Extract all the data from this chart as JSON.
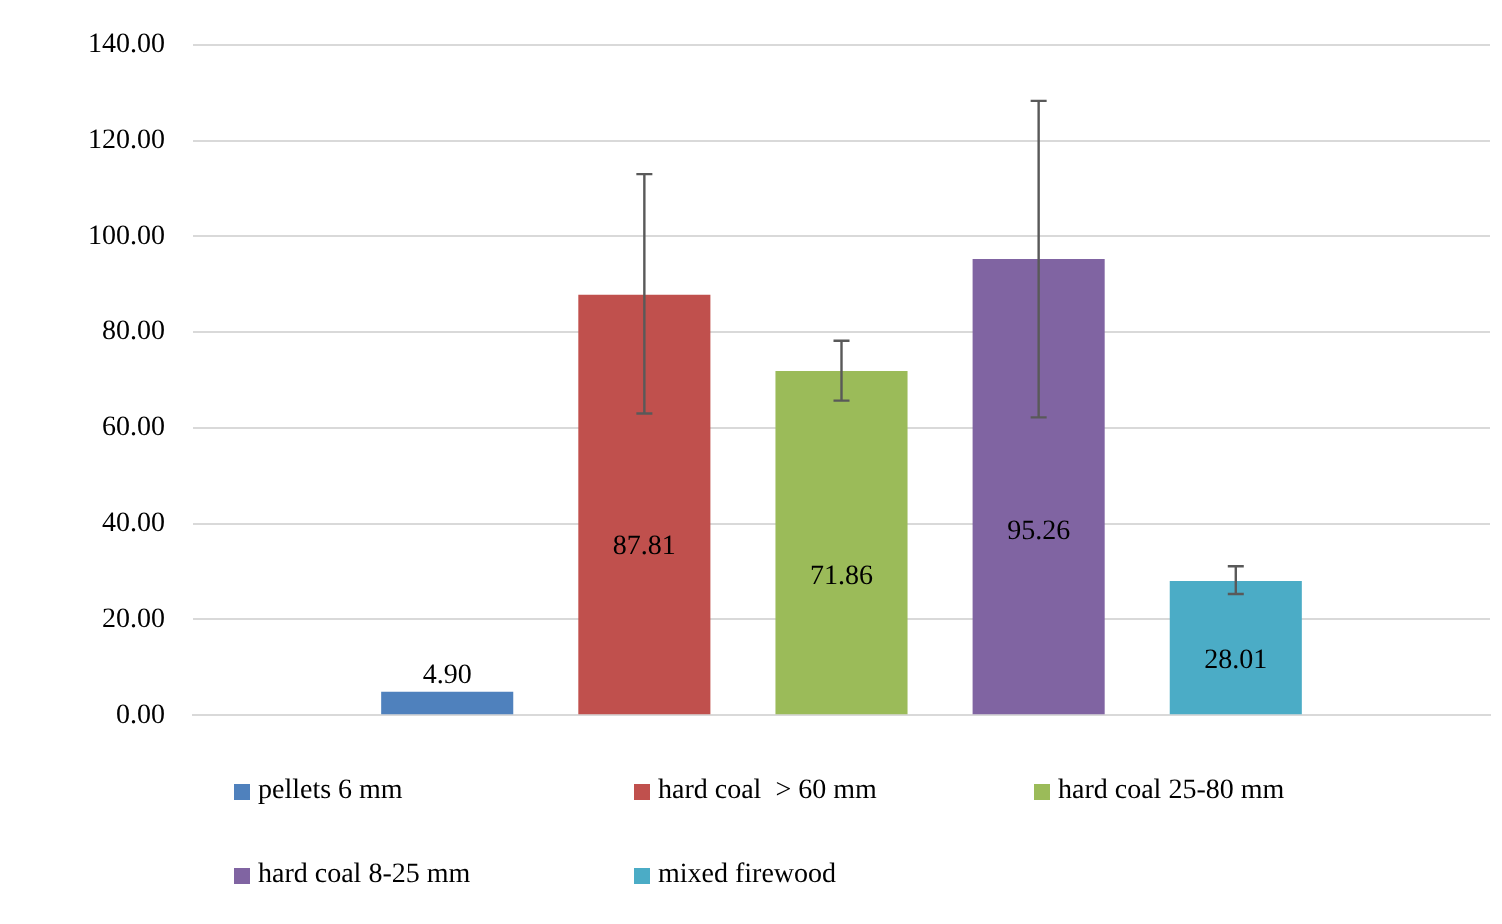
{
  "chart_data": {
    "type": "bar",
    "categories": [
      null
    ],
    "series": [
      {
        "name": "pellets 6 mm",
        "color": "#4f81bd",
        "values": [
          4.9
        ],
        "value_labels": [
          "4.90"
        ],
        "errors": [
          null
        ]
      },
      {
        "name": "hard coal  > 60 mm",
        "color": "#c0504d",
        "values": [
          87.81
        ],
        "value_labels": [
          "87.81"
        ],
        "errors": [
          [
            63,
            113
          ]
        ]
      },
      {
        "name": "hard coal 25-80 mm",
        "color": "#9bbb59",
        "values": [
          71.86
        ],
        "value_labels": [
          "71.86"
        ],
        "errors": [
          [
            65.7,
            78.2
          ]
        ]
      },
      {
        "name": "hard coal 8-25 mm",
        "color": "#8064a2",
        "values": [
          95.26
        ],
        "value_labels": [
          "95.26"
        ],
        "errors": [
          [
            62.2,
            128.3
          ]
        ]
      },
      {
        "name": "mixed firewood",
        "color": "#4bacc6",
        "values": [
          28.01
        ],
        "value_labels": [
          "28.01"
        ],
        "errors": [
          [
            25.3,
            31.1
          ]
        ]
      }
    ],
    "ylim": [
      0,
      140
    ],
    "yticks": [
      {
        "value": 0,
        "label": "0.00"
      },
      {
        "value": 20,
        "label": "20.00"
      },
      {
        "value": 40,
        "label": "40.00"
      },
      {
        "value": 60,
        "label": "60.00"
      },
      {
        "value": 80,
        "label": "80.00"
      },
      {
        "value": 100,
        "label": "100.00"
      },
      {
        "value": 120,
        "label": "120.00"
      },
      {
        "value": 140,
        "label": "140.00"
      }
    ],
    "grid": "y",
    "legend": "bottom"
  }
}
